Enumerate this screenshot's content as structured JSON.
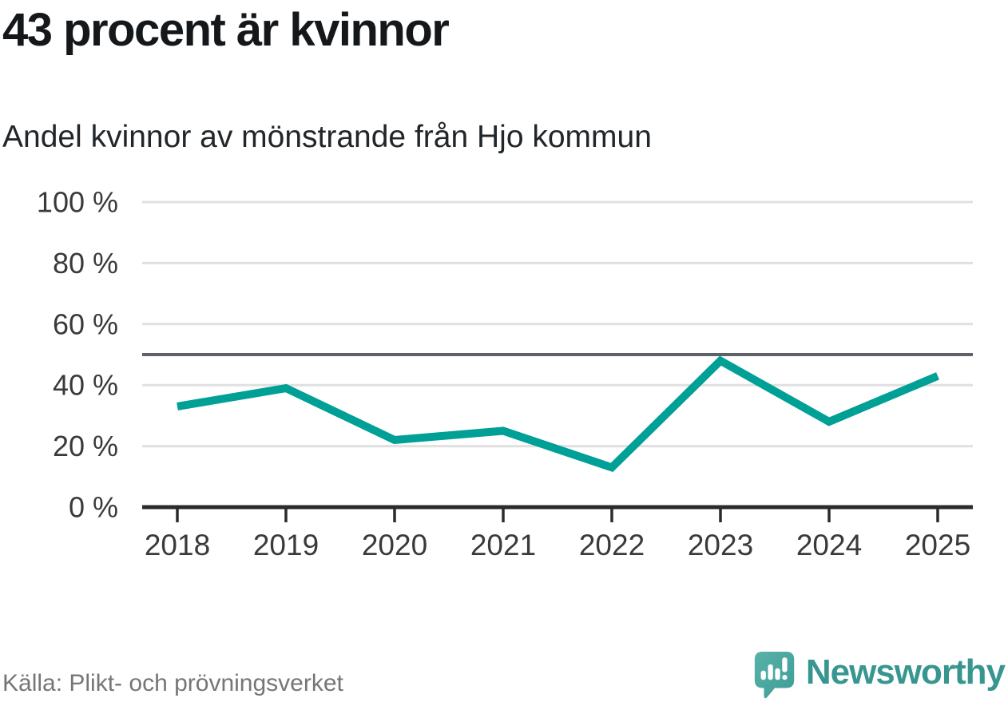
{
  "header": {
    "title": "43 procent är kvinnor",
    "subtitle": "Andel kvinnor av mönstrande från Hjo kommun"
  },
  "chart_data": {
    "type": "line",
    "title": "43 procent är kvinnor",
    "subtitle": "Andel kvinnor av mönstrande från Hjo kommun",
    "categories": [
      "2018",
      "2019",
      "2020",
      "2021",
      "2022",
      "2023",
      "2024",
      "2025"
    ],
    "series": [
      {
        "name": "Andel kvinnor av mönstrande",
        "values": [
          33,
          39,
          22,
          25,
          13,
          48,
          28,
          43
        ]
      }
    ],
    "unit": "%",
    "ylim": [
      0,
      100
    ],
    "yticks": [
      0,
      20,
      40,
      60,
      80,
      100
    ],
    "ytick_suffix": " %",
    "reference_line": 50,
    "grid": true,
    "legend": "none",
    "colors": {
      "line": "#00a096",
      "reference": "#5e6166",
      "grid": "#e0e0e0",
      "axis": "#2b2b2b",
      "tick_label": "#3a3a3a"
    }
  },
  "footer": {
    "source": "Källa: Plikt- och prövningsverket",
    "brand": "Newsworthy",
    "brand_color": "#37968f",
    "logo_gradient_light": "#58b2a9",
    "logo_gradient_dark": "#3d9d96"
  }
}
